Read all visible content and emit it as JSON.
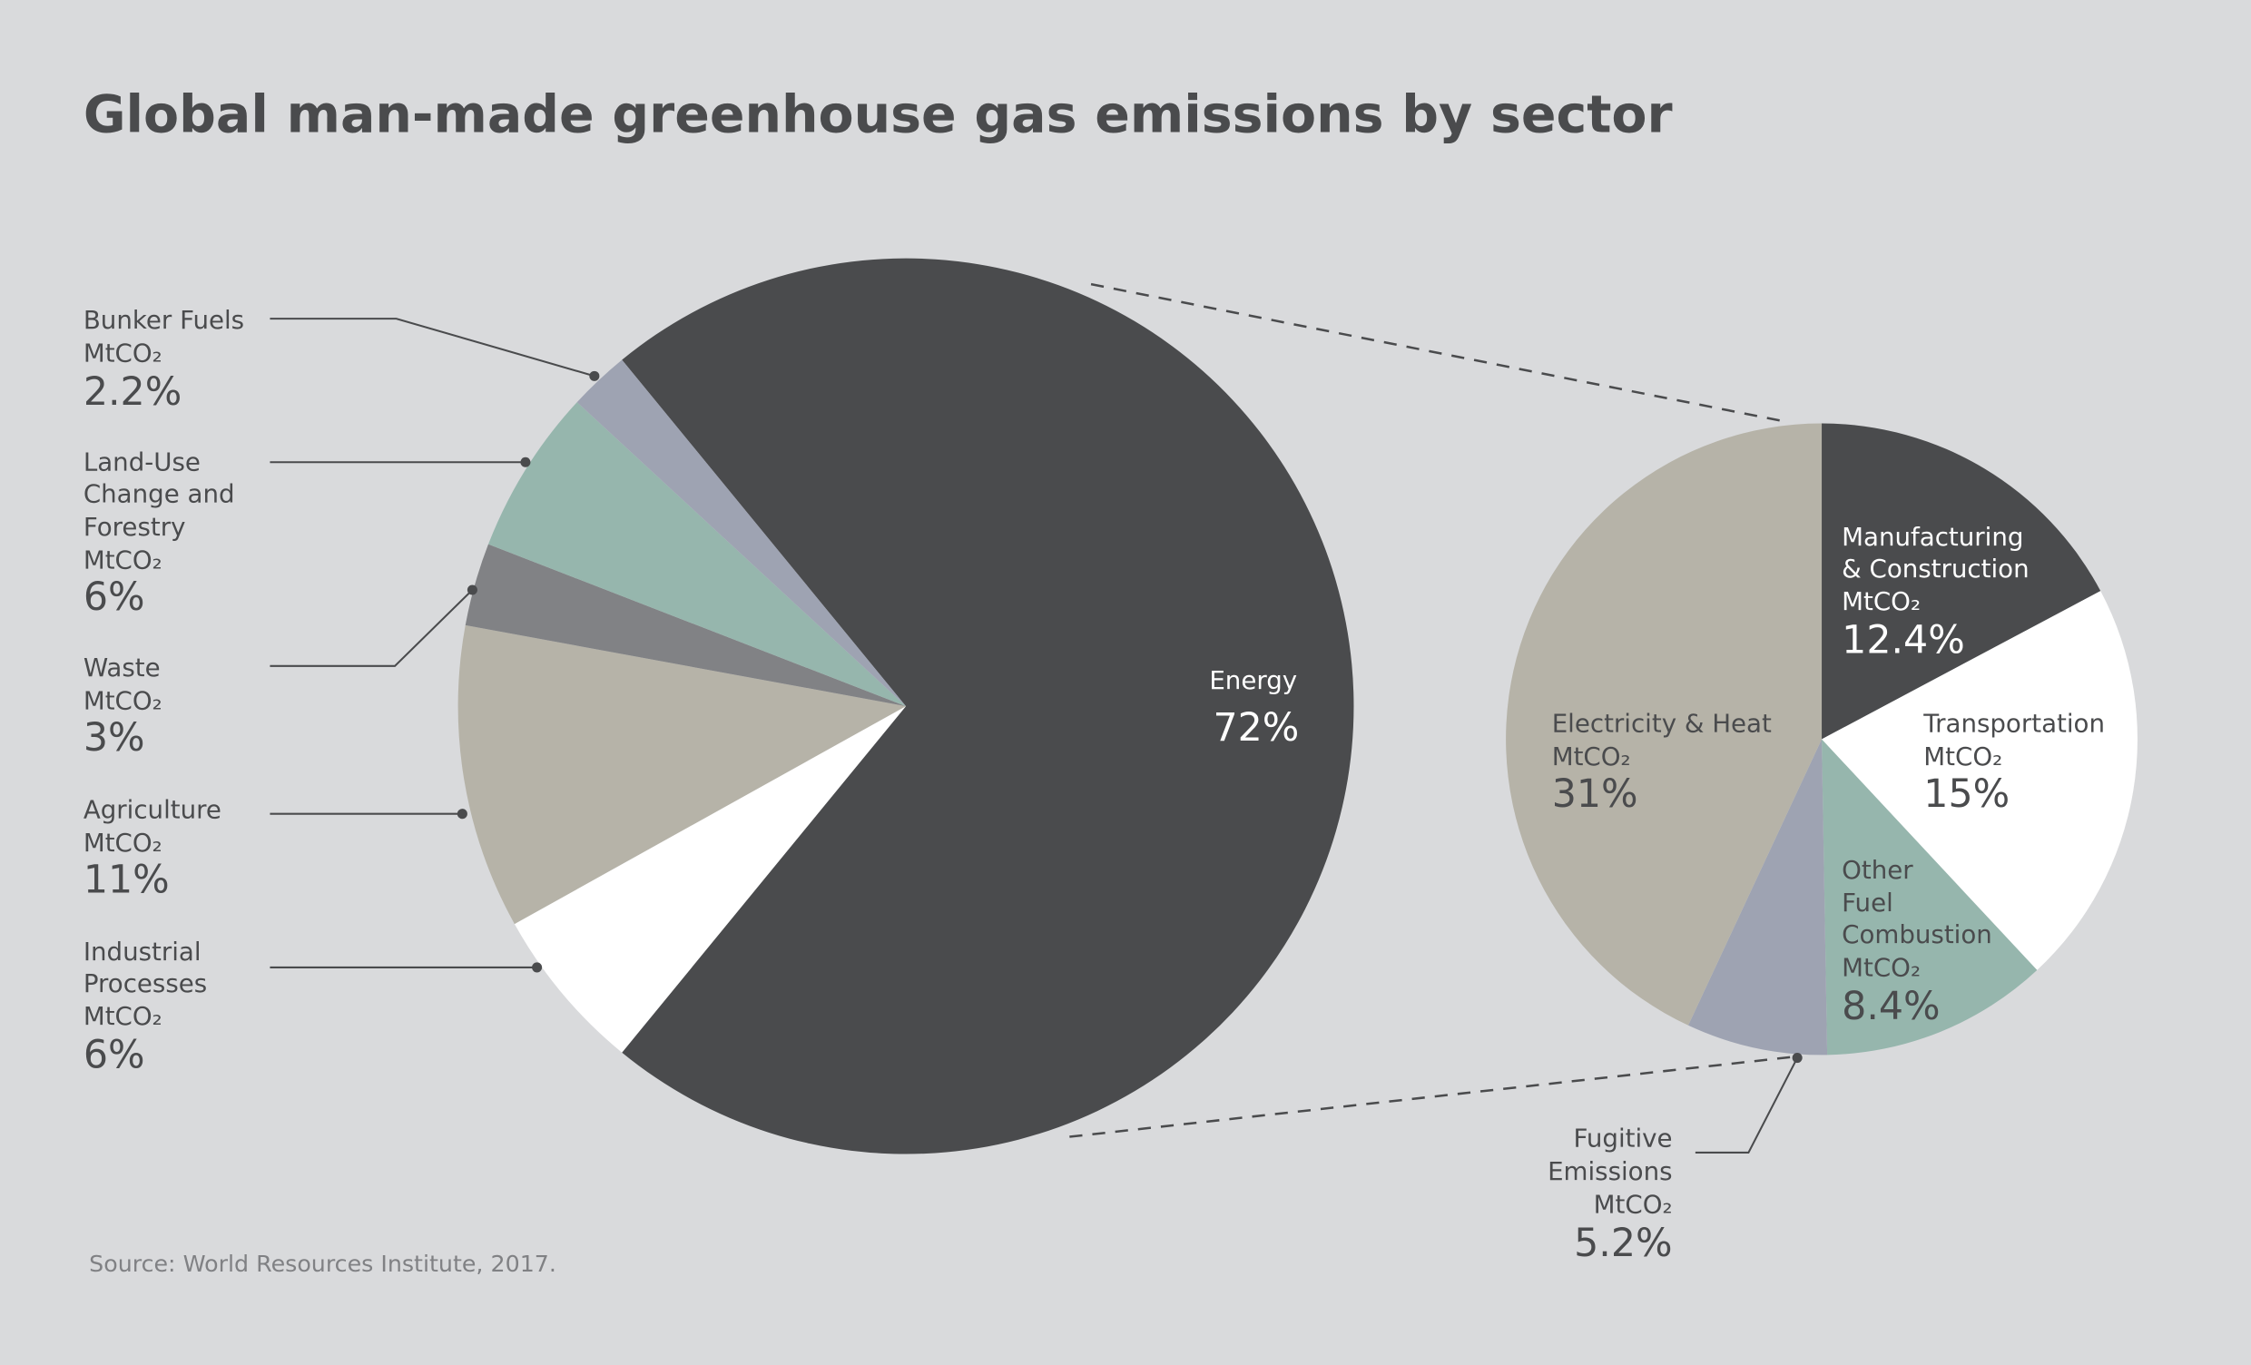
{
  "title": "Global man-made greenhouse gas emissions by sector",
  "source": "Source: World Resources Institute, 2017.",
  "colors": {
    "background": "#d9dadc",
    "text": "#4a4b4d",
    "energy": "#4a4b4d",
    "bunker_fuels": "#9ea3b2",
    "land_use": "#96b6ad",
    "waste": "#818285",
    "agriculture": "#b6b3a8",
    "industrial": "#ffffff"
  },
  "chart_data": [
    {
      "type": "pie",
      "unit": "MtCO₂",
      "slices": [
        {
          "label": "Energy",
          "value": 72,
          "display": "72%",
          "color": "#4a4b4d"
        },
        {
          "label": "Industrial Processes",
          "value": 6,
          "display": "6%",
          "color": "#ffffff"
        },
        {
          "label": "Agriculture",
          "value": 11,
          "display": "11%",
          "color": "#b6b3a8"
        },
        {
          "label": "Waste",
          "value": 3,
          "display": "3%",
          "color": "#818285"
        },
        {
          "label": "Land-Use Change and Forestry",
          "value": 6,
          "display": "6%",
          "color": "#96b6ad"
        },
        {
          "label": "Bunker Fuels",
          "value": 2.2,
          "display": "2.2%",
          "color": "#9ea3b2"
        }
      ]
    },
    {
      "type": "pie",
      "note": "breakdown of Energy",
      "unit": "MtCO₂",
      "slices": [
        {
          "label": "Manufacturing & Construction",
          "value": 12.4,
          "display": "12.4%",
          "color": "#4a4b4d"
        },
        {
          "label": "Transportation",
          "value": 15,
          "display": "15%",
          "color": "#ffffff"
        },
        {
          "label": "Other Fuel Combustion",
          "value": 8.4,
          "display": "8.4%",
          "color": "#96b6ad"
        },
        {
          "label": "Fugitive Emissions",
          "value": 5.2,
          "display": "5.2%",
          "color": "#9ea3b2"
        },
        {
          "label": "Electricity & Heat",
          "value": 31,
          "display": "31%",
          "color": "#b6b3a8"
        }
      ]
    }
  ],
  "labels": {
    "unit": "MtCO₂",
    "bunker": {
      "lines": [
        "Bunker Fuels"
      ],
      "pct": "2.2%"
    },
    "landuse": {
      "lines": [
        "Land-Use",
        "Change and",
        "Forestry"
      ],
      "pct": "6%"
    },
    "waste": {
      "lines": [
        "Waste"
      ],
      "pct": "3%"
    },
    "agriculture": {
      "lines": [
        "Agriculture"
      ],
      "pct": "11%"
    },
    "industrial": {
      "lines": [
        "Industrial",
        "Processes"
      ],
      "pct": "6%"
    },
    "energy": {
      "lines": [
        "Energy"
      ],
      "pct": "72%"
    },
    "manufacturing": {
      "lines": [
        "Manufacturing",
        "& Construction"
      ],
      "pct": "12.4%"
    },
    "transportation": {
      "lines": [
        "Transportation"
      ],
      "pct": "15%"
    },
    "electricity": {
      "lines": [
        "Electricity & Heat"
      ],
      "pct": "31%"
    },
    "otherfuel": {
      "lines": [
        "Other",
        "Fuel",
        "Combustion"
      ],
      "pct": "8.4%"
    },
    "fugitive": {
      "lines": [
        "Fugitive",
        "Emissions"
      ],
      "pct": "5.2%"
    }
  }
}
